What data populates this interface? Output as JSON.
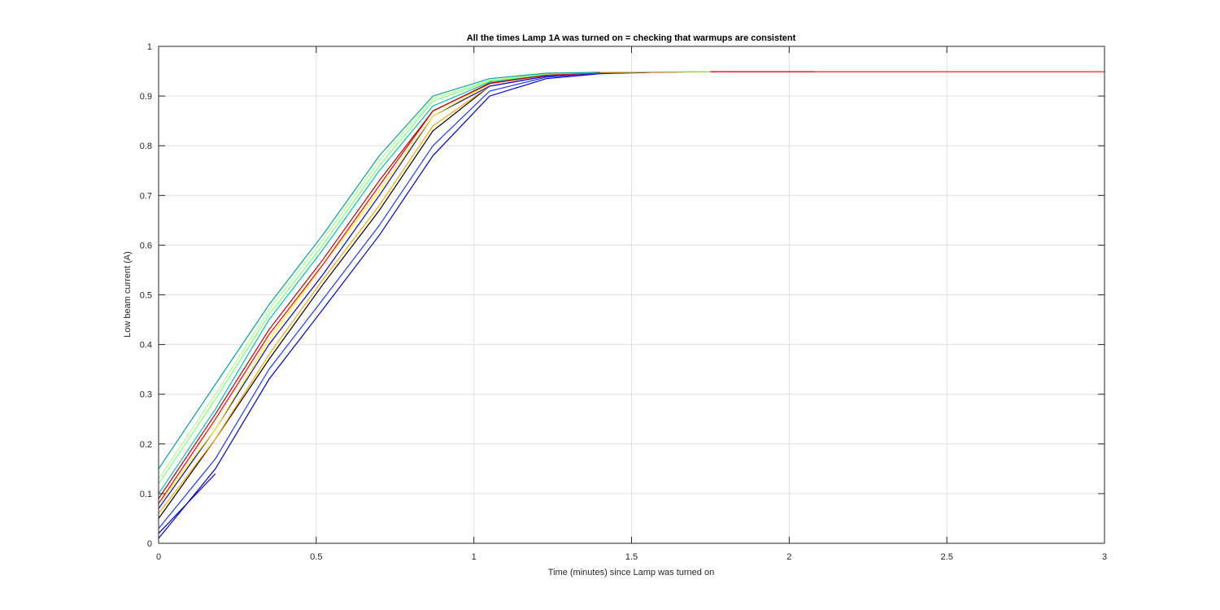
{
  "chart_data": {
    "type": "line",
    "title": "All the times Lamp 1A was turned on = checking that warmups are consistent",
    "xlabel": "Time (minutes) since Lamp was turned on",
    "ylabel": "Low beam current (A)",
    "xlim": [
      0,
      3
    ],
    "ylim": [
      0,
      1
    ],
    "xticks": [
      0,
      0.5,
      1,
      1.5,
      2,
      2.5,
      3
    ],
    "xtick_labels": [
      "0",
      "0.5",
      "1",
      "1.5",
      "2",
      "2.5",
      "3"
    ],
    "yticks": [
      0,
      0.1,
      0.2,
      0.3,
      0.4,
      0.5,
      0.6,
      0.7,
      0.8,
      0.9,
      1
    ],
    "ytick_labels": [
      "0",
      "0.1",
      "0.2",
      "0.3",
      "0.4",
      "0.5",
      "0.6",
      "0.7",
      "0.8",
      "0.9",
      "1"
    ],
    "grid": true,
    "legend": "none",
    "colors": [
      "#0000cc",
      "#0000ff",
      "#1e90ff",
      "#00bfbf",
      "#00a0a0",
      "#7fff7f",
      "#b0ff80",
      "#ffff00",
      "#ffa500",
      "#ff0000",
      "#c00000",
      "#000000"
    ],
    "series": [
      {
        "color": "#0000cc",
        "x": [
          0,
          0.18
        ],
        "y": [
          0.02,
          0.14
        ]
      },
      {
        "color": "#0000cc",
        "x": [
          0,
          0.18,
          0.35,
          0.52,
          0.7,
          0.87,
          1.05,
          1.23,
          1.4,
          1.58,
          1.75,
          1.93,
          2.08
        ],
        "y": [
          0.01,
          0.15,
          0.33,
          0.47,
          0.62,
          0.78,
          0.9,
          0.935,
          0.945,
          0.948,
          0.949,
          0.949,
          0.949
        ]
      },
      {
        "color": "#1e3cff",
        "x": [
          0,
          0.18,
          0.35,
          0.52,
          0.7,
          0.87,
          1.05,
          1.23,
          1.4,
          1.58
        ],
        "y": [
          0.03,
          0.17,
          0.35,
          0.49,
          0.64,
          0.8,
          0.91,
          0.938,
          0.946,
          0.948
        ]
      },
      {
        "color": "#000000",
        "x": [
          0,
          0.18,
          0.35,
          0.52,
          0.7,
          0.87,
          1.05,
          1.23,
          1.4
        ],
        "y": [
          0.05,
          0.21,
          0.37,
          0.52,
          0.67,
          0.83,
          0.92,
          0.94,
          0.947
        ]
      },
      {
        "color": "#ffa500",
        "x": [
          0,
          0.18,
          0.35,
          0.52,
          0.7,
          0.87,
          1.05,
          1.23,
          1.4,
          1.58,
          1.75
        ],
        "y": [
          0.06,
          0.21,
          0.38,
          0.53,
          0.68,
          0.84,
          0.92,
          0.94,
          0.947,
          0.948,
          0.949
        ]
      },
      {
        "color": "#0000ff",
        "x": [
          0,
          0.18,
          0.35,
          0.52,
          0.7,
          0.87,
          1.05,
          1.23,
          1.4
        ],
        "y": [
          0.07,
          0.23,
          0.4,
          0.54,
          0.7,
          0.86,
          0.92,
          0.94,
          0.947
        ]
      },
      {
        "color": "#ffff00",
        "x": [
          0,
          0.18,
          0.35,
          0.52,
          0.7,
          0.87,
          1.05,
          1.23,
          1.4,
          1.58,
          1.75
        ],
        "y": [
          0.08,
          0.23,
          0.41,
          0.56,
          0.71,
          0.86,
          0.925,
          0.942,
          0.947,
          0.948,
          0.949
        ]
      },
      {
        "color": "#ff0000",
        "x": [
          0,
          0.18,
          0.35,
          0.52,
          0.7,
          0.87,
          1.05,
          1.23,
          1.4,
          1.58,
          1.75,
          1.93,
          2.1,
          3.0
        ],
        "y": [
          0.08,
          0.25,
          0.42,
          0.56,
          0.72,
          0.87,
          0.925,
          0.942,
          0.947,
          0.948,
          0.949,
          0.949,
          0.949,
          0.949
        ]
      },
      {
        "color": "#c00000",
        "x": [
          0,
          0.18,
          0.35,
          0.52,
          0.7,
          0.87,
          1.05,
          1.23
        ],
        "y": [
          0.09,
          0.26,
          0.43,
          0.57,
          0.73,
          0.87,
          0.926,
          0.943
        ]
      },
      {
        "color": "#00bfbf",
        "x": [
          0,
          0.18,
          0.35,
          0.52,
          0.7,
          0.87,
          1.05,
          1.23,
          1.4
        ],
        "y": [
          0.1,
          0.27,
          0.45,
          0.59,
          0.75,
          0.88,
          0.928,
          0.944,
          0.948
        ]
      },
      {
        "color": "#7fff7f",
        "x": [
          0,
          0.18,
          0.35,
          0.52,
          0.7,
          0.87,
          1.05,
          1.23,
          1.4,
          1.58,
          1.75
        ],
        "y": [
          0.12,
          0.29,
          0.46,
          0.6,
          0.76,
          0.89,
          0.93,
          0.944,
          0.948,
          0.949,
          0.949
        ]
      },
      {
        "color": "#b0ff80",
        "x": [
          0,
          0.18,
          0.35,
          0.52,
          0.7,
          0.87,
          1.05,
          1.23,
          1.4
        ],
        "y": [
          0.13,
          0.3,
          0.47,
          0.61,
          0.77,
          0.895,
          0.932,
          0.945,
          0.948
        ]
      },
      {
        "color": "#00a0a0",
        "x": [
          0,
          0.18,
          0.35,
          0.52,
          0.7,
          0.87,
          1.05,
          1.23,
          1.4
        ],
        "y": [
          0.15,
          0.32,
          0.48,
          0.62,
          0.78,
          0.9,
          0.935,
          0.946,
          0.948
        ]
      }
    ]
  }
}
